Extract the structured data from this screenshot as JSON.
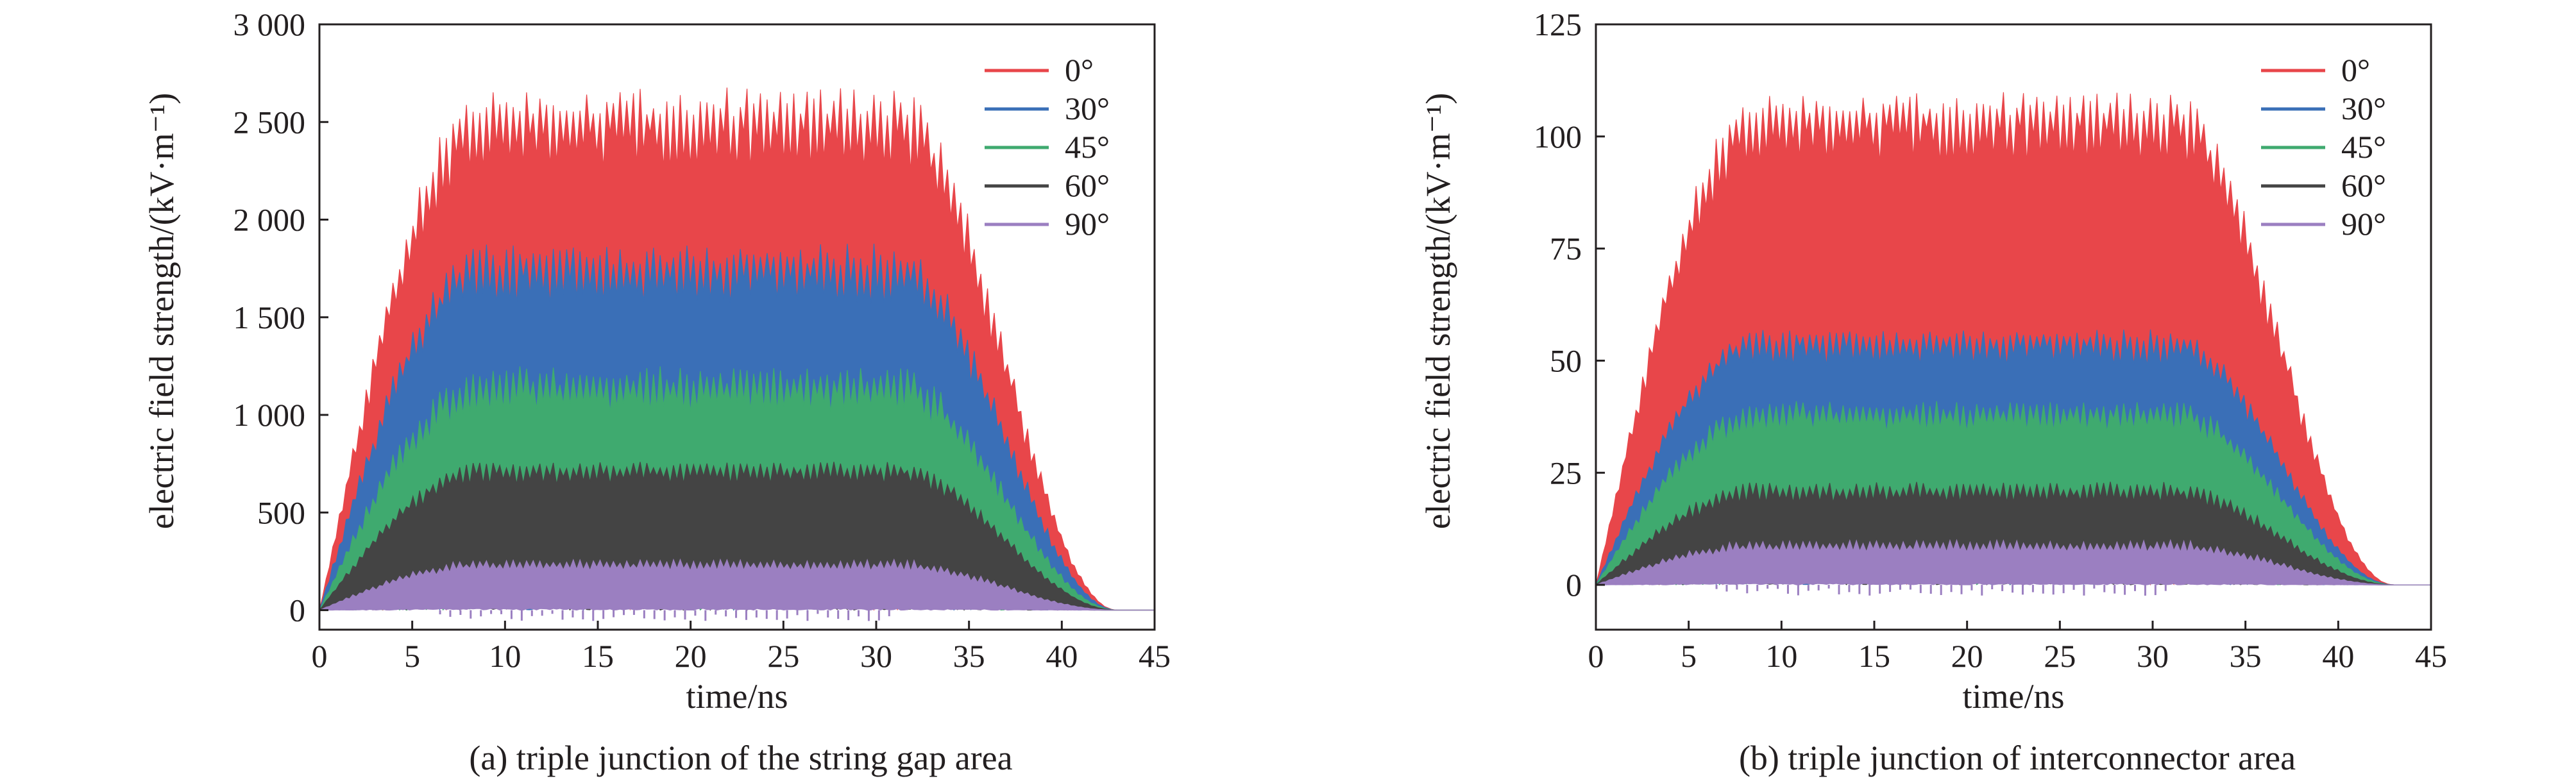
{
  "chart_data": [
    {
      "type": "area",
      "panel": "a",
      "caption": "(a) triple junction of the string gap area",
      "xlabel": "time/ns",
      "ylabel": "electric field strength/(kV·m⁻¹)",
      "xlim": [
        0,
        45
      ],
      "ylim": [
        -100,
        3000
      ],
      "xticks": [
        0,
        5,
        10,
        15,
        20,
        25,
        30,
        35,
        40,
        45
      ],
      "xtick_labels": [
        "0",
        "5",
        "10",
        "15",
        "20",
        "25",
        "30",
        "35",
        "40",
        "45"
      ],
      "yticks": [
        0,
        500,
        1000,
        1500,
        2000,
        2500,
        3000
      ],
      "ytick_labels": [
        "0",
        "500",
        "1 000",
        "1 500",
        "2 000",
        "2 500",
        "3 000"
      ],
      "legend_position": "top-right",
      "rise_start_ns": 0,
      "plateau_start_ns": 9,
      "plateau_end_ns": 31,
      "decay_end_ns": 43,
      "series": [
        {
          "name": "0°",
          "color": "#e8464a",
          "plateau_envelope": 2450,
          "peak": 2680
        },
        {
          "name": "30°",
          "color": "#3a6fb7",
          "plateau_envelope": 1700,
          "peak": 1880
        },
        {
          "name": "45°",
          "color": "#3faa6f",
          "plateau_envelope": 1100,
          "peak": 1250
        },
        {
          "name": "60°",
          "color": "#444444",
          "plateau_envelope": 700,
          "peak": 760
        },
        {
          "name": "90°",
          "color": "#9b7fc1",
          "plateau_envelope": 220,
          "peak": 260
        }
      ]
    },
    {
      "type": "area",
      "panel": "b",
      "caption": "(b) triple junction of interconnector area",
      "xlabel": "time/ns",
      "ylabel": "electric field strength/(kV·m⁻¹)",
      "xlim": [
        0,
        45
      ],
      "ylim": [
        -10,
        125
      ],
      "xticks": [
        0,
        5,
        10,
        15,
        20,
        25,
        30,
        35,
        40,
        45
      ],
      "xtick_labels": [
        "0",
        "5",
        "10",
        "15",
        "20",
        "25",
        "30",
        "35",
        "40",
        "45"
      ],
      "yticks": [
        0,
        25,
        50,
        75,
        100,
        125
      ],
      "ytick_labels": [
        "0",
        "25",
        "50",
        "75",
        "100",
        "125"
      ],
      "legend_position": "top-right",
      "rise_start_ns": 0,
      "plateau_start_ns": 9,
      "plateau_end_ns": 31,
      "decay_end_ns": 43,
      "series": [
        {
          "name": "0°",
          "color": "#e8464a",
          "plateau_envelope": 102,
          "peak": 110
        },
        {
          "name": "30°",
          "color": "#3a6fb7",
          "plateau_envelope": 53,
          "peak": 57
        },
        {
          "name": "45°",
          "color": "#3faa6f",
          "plateau_envelope": 37,
          "peak": 41
        },
        {
          "name": "60°",
          "color": "#444444",
          "plateau_envelope": 20,
          "peak": 23
        },
        {
          "name": "90°",
          "color": "#9b7fc1",
          "plateau_envelope": 8,
          "peak": 10
        }
      ]
    }
  ]
}
